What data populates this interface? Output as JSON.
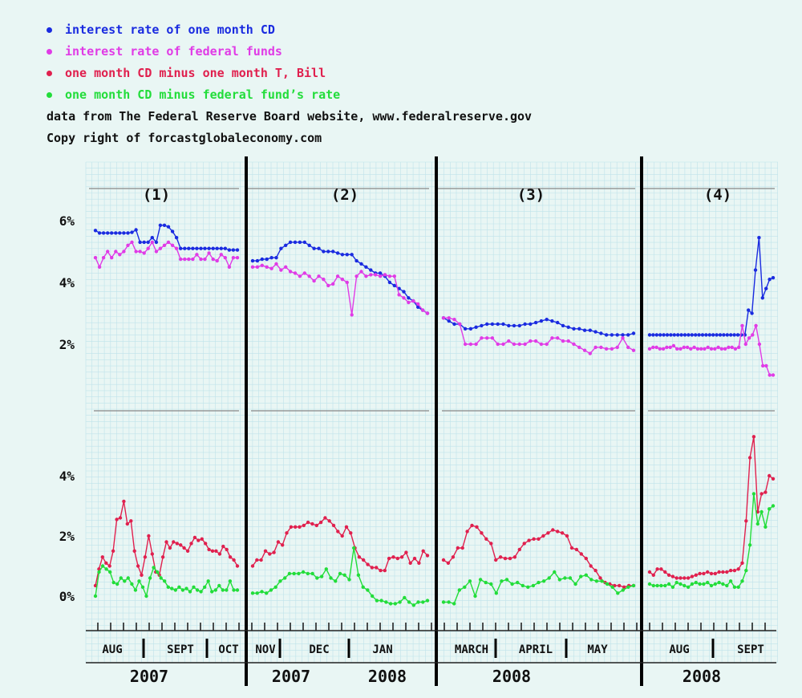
{
  "legend": {
    "items": [
      {
        "label": "interest rate of one month CD",
        "color": "#1a2be0"
      },
      {
        "label": "interest rate of federal funds",
        "color": "#e03be6"
      },
      {
        "label": "one month CD minus one month T, Bill",
        "color": "#e0204e"
      },
      {
        "label": "one month CD minus federal fund’s rate",
        "color": "#22dd3a"
      }
    ],
    "source": "data from The Federal Reserve Board website, www.federalreserve.gov",
    "copyright": "Copy right of forcastglobaleconomy.com"
  },
  "chart_data": {
    "type": "line",
    "grid": true,
    "y_axes": {
      "top": {
        "ticks": [
          "6%",
          "4%",
          "2%"
        ],
        "values": [
          6,
          4,
          2
        ]
      },
      "bottom": {
        "ticks": [
          "4%",
          "2%",
          "0%"
        ],
        "values": [
          4,
          2,
          0
        ]
      }
    },
    "panels": [
      {
        "title": "(1)",
        "months": [
          "AUG",
          "SEPT",
          "OCT"
        ],
        "years": [
          "2007"
        ],
        "series": [
          {
            "values": [
              5.68,
              5.6,
              5.6,
              5.6,
              5.6,
              5.6,
              5.6,
              5.6,
              5.6,
              5.62,
              5.7,
              5.3,
              5.3,
              5.3,
              5.45,
              5.3,
              5.85,
              5.85,
              5.8,
              5.65,
              5.45,
              5.1,
              5.1,
              5.1,
              5.1,
              5.1,
              5.1,
              5.1,
              5.1,
              5.1,
              5.1,
              5.1,
              5.1,
              5.05,
              5.05,
              5.05
            ]
          },
          {
            "values": [
              4.8,
              4.5,
              4.8,
              5.0,
              4.8,
              5.0,
              4.9,
              5.0,
              5.2,
              5.3,
              5.0,
              5.0,
              4.95,
              5.1,
              5.3,
              5.0,
              5.1,
              5.2,
              5.3,
              5.2,
              5.1,
              4.75,
              4.75,
              4.75,
              4.75,
              4.9,
              4.75,
              4.75,
              4.95,
              4.75,
              4.7,
              4.9,
              4.8,
              4.5,
              4.8,
              4.8
            ]
          },
          {
            "values": [
              0.35,
              0.9,
              1.3,
              1.1,
              1.0,
              1.5,
              2.55,
              2.6,
              3.15,
              2.4,
              2.5,
              1.5,
              1.0,
              0.7,
              1.3,
              2.0,
              1.4,
              0.8,
              0.7,
              1.3,
              1.8,
              1.6,
              1.8,
              1.75,
              1.7,
              1.6,
              1.5,
              1.75,
              1.95,
              1.85,
              1.9,
              1.75,
              1.55,
              1.5,
              1.5,
              1.4,
              1.65,
              1.55,
              1.3,
              1.2,
              1.0
            ]
          },
          {
            "values": [
              0.0,
              0.8,
              1.0,
              0.9,
              0.8,
              0.45,
              0.4,
              0.6,
              0.5,
              0.6,
              0.4,
              0.2,
              0.5,
              0.3,
              0.0,
              0.6,
              0.95,
              0.8,
              0.6,
              0.5,
              0.3,
              0.25,
              0.2,
              0.3,
              0.2,
              0.25,
              0.15,
              0.3,
              0.2,
              0.15,
              0.3,
              0.5,
              0.15,
              0.2,
              0.35,
              0.2,
              0.2,
              0.5,
              0.2,
              0.2
            ]
          }
        ]
      },
      {
        "title": "(2)",
        "months": [
          "NOV",
          "DEC",
          "JAN"
        ],
        "years": [
          "2007",
          "2008"
        ],
        "series": [
          {
            "values": [
              4.7,
              4.7,
              4.75,
              4.75,
              4.8,
              4.8,
              5.1,
              5.2,
              5.3,
              5.3,
              5.3,
              5.3,
              5.2,
              5.1,
              5.1,
              5.0,
              5.0,
              5.0,
              4.95,
              4.9,
              4.9,
              4.9,
              4.7,
              4.6,
              4.5,
              4.4,
              4.3,
              4.3,
              4.2,
              4.0,
              3.9,
              3.8,
              3.7,
              3.5,
              3.4,
              3.2,
              3.1,
              3.0
            ]
          },
          {
            "values": [
              4.5,
              4.5,
              4.55,
              4.5,
              4.45,
              4.6,
              4.4,
              4.5,
              4.35,
              4.3,
              4.2,
              4.3,
              4.2,
              4.05,
              4.2,
              4.1,
              3.9,
              3.95,
              4.2,
              4.1,
              4.0,
              2.95,
              4.2,
              4.35,
              4.2,
              4.25,
              4.25,
              4.2,
              4.25,
              4.2,
              4.2,
              3.6,
              3.5,
              3.35,
              3.4,
              3.3,
              3.1,
              3.0
            ]
          },
          {
            "values": [
              1.0,
              1.2,
              1.2,
              1.5,
              1.4,
              1.45,
              1.8,
              1.7,
              2.1,
              2.3,
              2.3,
              2.3,
              2.35,
              2.45,
              2.4,
              2.35,
              2.45,
              2.6,
              2.5,
              2.35,
              2.15,
              2.0,
              2.3,
              2.1,
              1.6,
              1.3,
              1.2,
              1.05,
              0.95,
              0.95,
              0.85,
              0.85,
              1.25,
              1.3,
              1.25,
              1.3,
              1.45,
              1.1,
              1.25,
              1.1,
              1.5,
              1.35
            ]
          },
          {
            "values": [
              0.1,
              0.1,
              0.15,
              0.1,
              0.2,
              0.3,
              0.5,
              0.6,
              0.75,
              0.75,
              0.75,
              0.8,
              0.75,
              0.75,
              0.6,
              0.65,
              0.9,
              0.6,
              0.5,
              0.75,
              0.7,
              0.55,
              1.6,
              0.7,
              0.3,
              0.2,
              0.0,
              -0.15,
              -0.15,
              -0.2,
              -0.25,
              -0.25,
              -0.2,
              -0.05,
              -0.2,
              -0.3,
              -0.2,
              -0.2,
              -0.15
            ]
          }
        ]
      },
      {
        "title": "(3)",
        "months": [
          "MARCH",
          "APRIL",
          "MAY"
        ],
        "years": [
          "2008"
        ],
        "series": [
          {
            "values": [
              2.85,
              2.75,
              2.65,
              2.65,
              2.5,
              2.5,
              2.55,
              2.6,
              2.65,
              2.65,
              2.65,
              2.65,
              2.6,
              2.6,
              2.6,
              2.65,
              2.65,
              2.7,
              2.75,
              2.8,
              2.75,
              2.7,
              2.6,
              2.55,
              2.5,
              2.5,
              2.45,
              2.45,
              2.4,
              2.35,
              2.3,
              2.3,
              2.3,
              2.3,
              2.3,
              2.35
            ]
          },
          {
            "values": [
              2.85,
              2.85,
              2.8,
              2.65,
              2.0,
              2.0,
              2.0,
              2.2,
              2.2,
              2.2,
              2.0,
              2.0,
              2.1,
              2.0,
              2.0,
              2.0,
              2.1,
              2.1,
              2.0,
              2.0,
              2.2,
              2.2,
              2.1,
              2.1,
              2.0,
              1.9,
              1.8,
              1.7,
              1.9,
              1.9,
              1.85,
              1.85,
              1.9,
              2.2,
              1.9,
              1.8
            ]
          },
          {
            "values": [
              1.2,
              1.1,
              1.3,
              1.6,
              1.6,
              2.15,
              2.35,
              2.3,
              2.1,
              1.9,
              1.75,
              1.2,
              1.3,
              1.25,
              1.25,
              1.3,
              1.55,
              1.75,
              1.85,
              1.9,
              1.9,
              2.0,
              2.1,
              2.2,
              2.15,
              2.1,
              2.0,
              1.6,
              1.55,
              1.4,
              1.25,
              1.0,
              0.85,
              0.6,
              0.45,
              0.4,
              0.35,
              0.35,
              0.3,
              0.35,
              0.35
            ]
          },
          {
            "values": [
              -0.2,
              -0.2,
              -0.25,
              0.2,
              0.3,
              0.5,
              0.0,
              0.55,
              0.45,
              0.4,
              0.1,
              0.5,
              0.55,
              0.4,
              0.45,
              0.35,
              0.3,
              0.35,
              0.45,
              0.5,
              0.6,
              0.8,
              0.55,
              0.6,
              0.6,
              0.4,
              0.65,
              0.7,
              0.55,
              0.5,
              0.5,
              0.4,
              0.3,
              0.1,
              0.2,
              0.3,
              0.35
            ]
          }
        ]
      },
      {
        "title": "(4)",
        "months": [
          "AUG",
          "SEPT"
        ],
        "years": [
          "2008"
        ],
        "series": [
          {
            "values": [
              2.3,
              2.3,
              2.3,
              2.3,
              2.3,
              2.3,
              2.3,
              2.3,
              2.3,
              2.3,
              2.3,
              2.3,
              2.3,
              2.3,
              2.3,
              2.3,
              2.3,
              2.3,
              2.3,
              2.3,
              2.3,
              2.3,
              2.3,
              2.3,
              2.3,
              2.3,
              2.3,
              2.3,
              3.1,
              3.0,
              4.4,
              5.45,
              3.5,
              3.8,
              4.1,
              4.15
            ]
          },
          {
            "values": [
              1.85,
              1.9,
              1.9,
              1.85,
              1.85,
              1.9,
              1.9,
              1.95,
              1.85,
              1.85,
              1.9,
              1.9,
              1.85,
              1.9,
              1.85,
              1.85,
              1.85,
              1.9,
              1.85,
              1.85,
              1.9,
              1.85,
              1.85,
              1.9,
              1.9,
              1.85,
              1.9,
              2.6,
              2.0,
              2.2,
              2.3,
              2.6,
              2.0,
              1.3,
              1.3,
              1.0,
              1.0
            ]
          },
          {
            "values": [
              0.8,
              0.7,
              0.9,
              0.9,
              0.8,
              0.7,
              0.65,
              0.6,
              0.6,
              0.6,
              0.6,
              0.65,
              0.7,
              0.75,
              0.75,
              0.8,
              0.75,
              0.75,
              0.8,
              0.8,
              0.8,
              0.85,
              0.85,
              0.9,
              1.1,
              2.5,
              4.6,
              5.3,
              2.8,
              3.4,
              3.45,
              4.0,
              3.9
            ]
          },
          {
            "values": [
              0.4,
              0.35,
              0.35,
              0.35,
              0.35,
              0.4,
              0.3,
              0.45,
              0.4,
              0.35,
              0.3,
              0.4,
              0.45,
              0.4,
              0.4,
              0.45,
              0.35,
              0.4,
              0.45,
              0.4,
              0.35,
              0.5,
              0.3,
              0.3,
              0.5,
              0.85,
              1.7,
              3.4,
              2.4,
              2.8,
              2.3,
              2.9,
              3.0
            ]
          }
        ]
      }
    ]
  }
}
